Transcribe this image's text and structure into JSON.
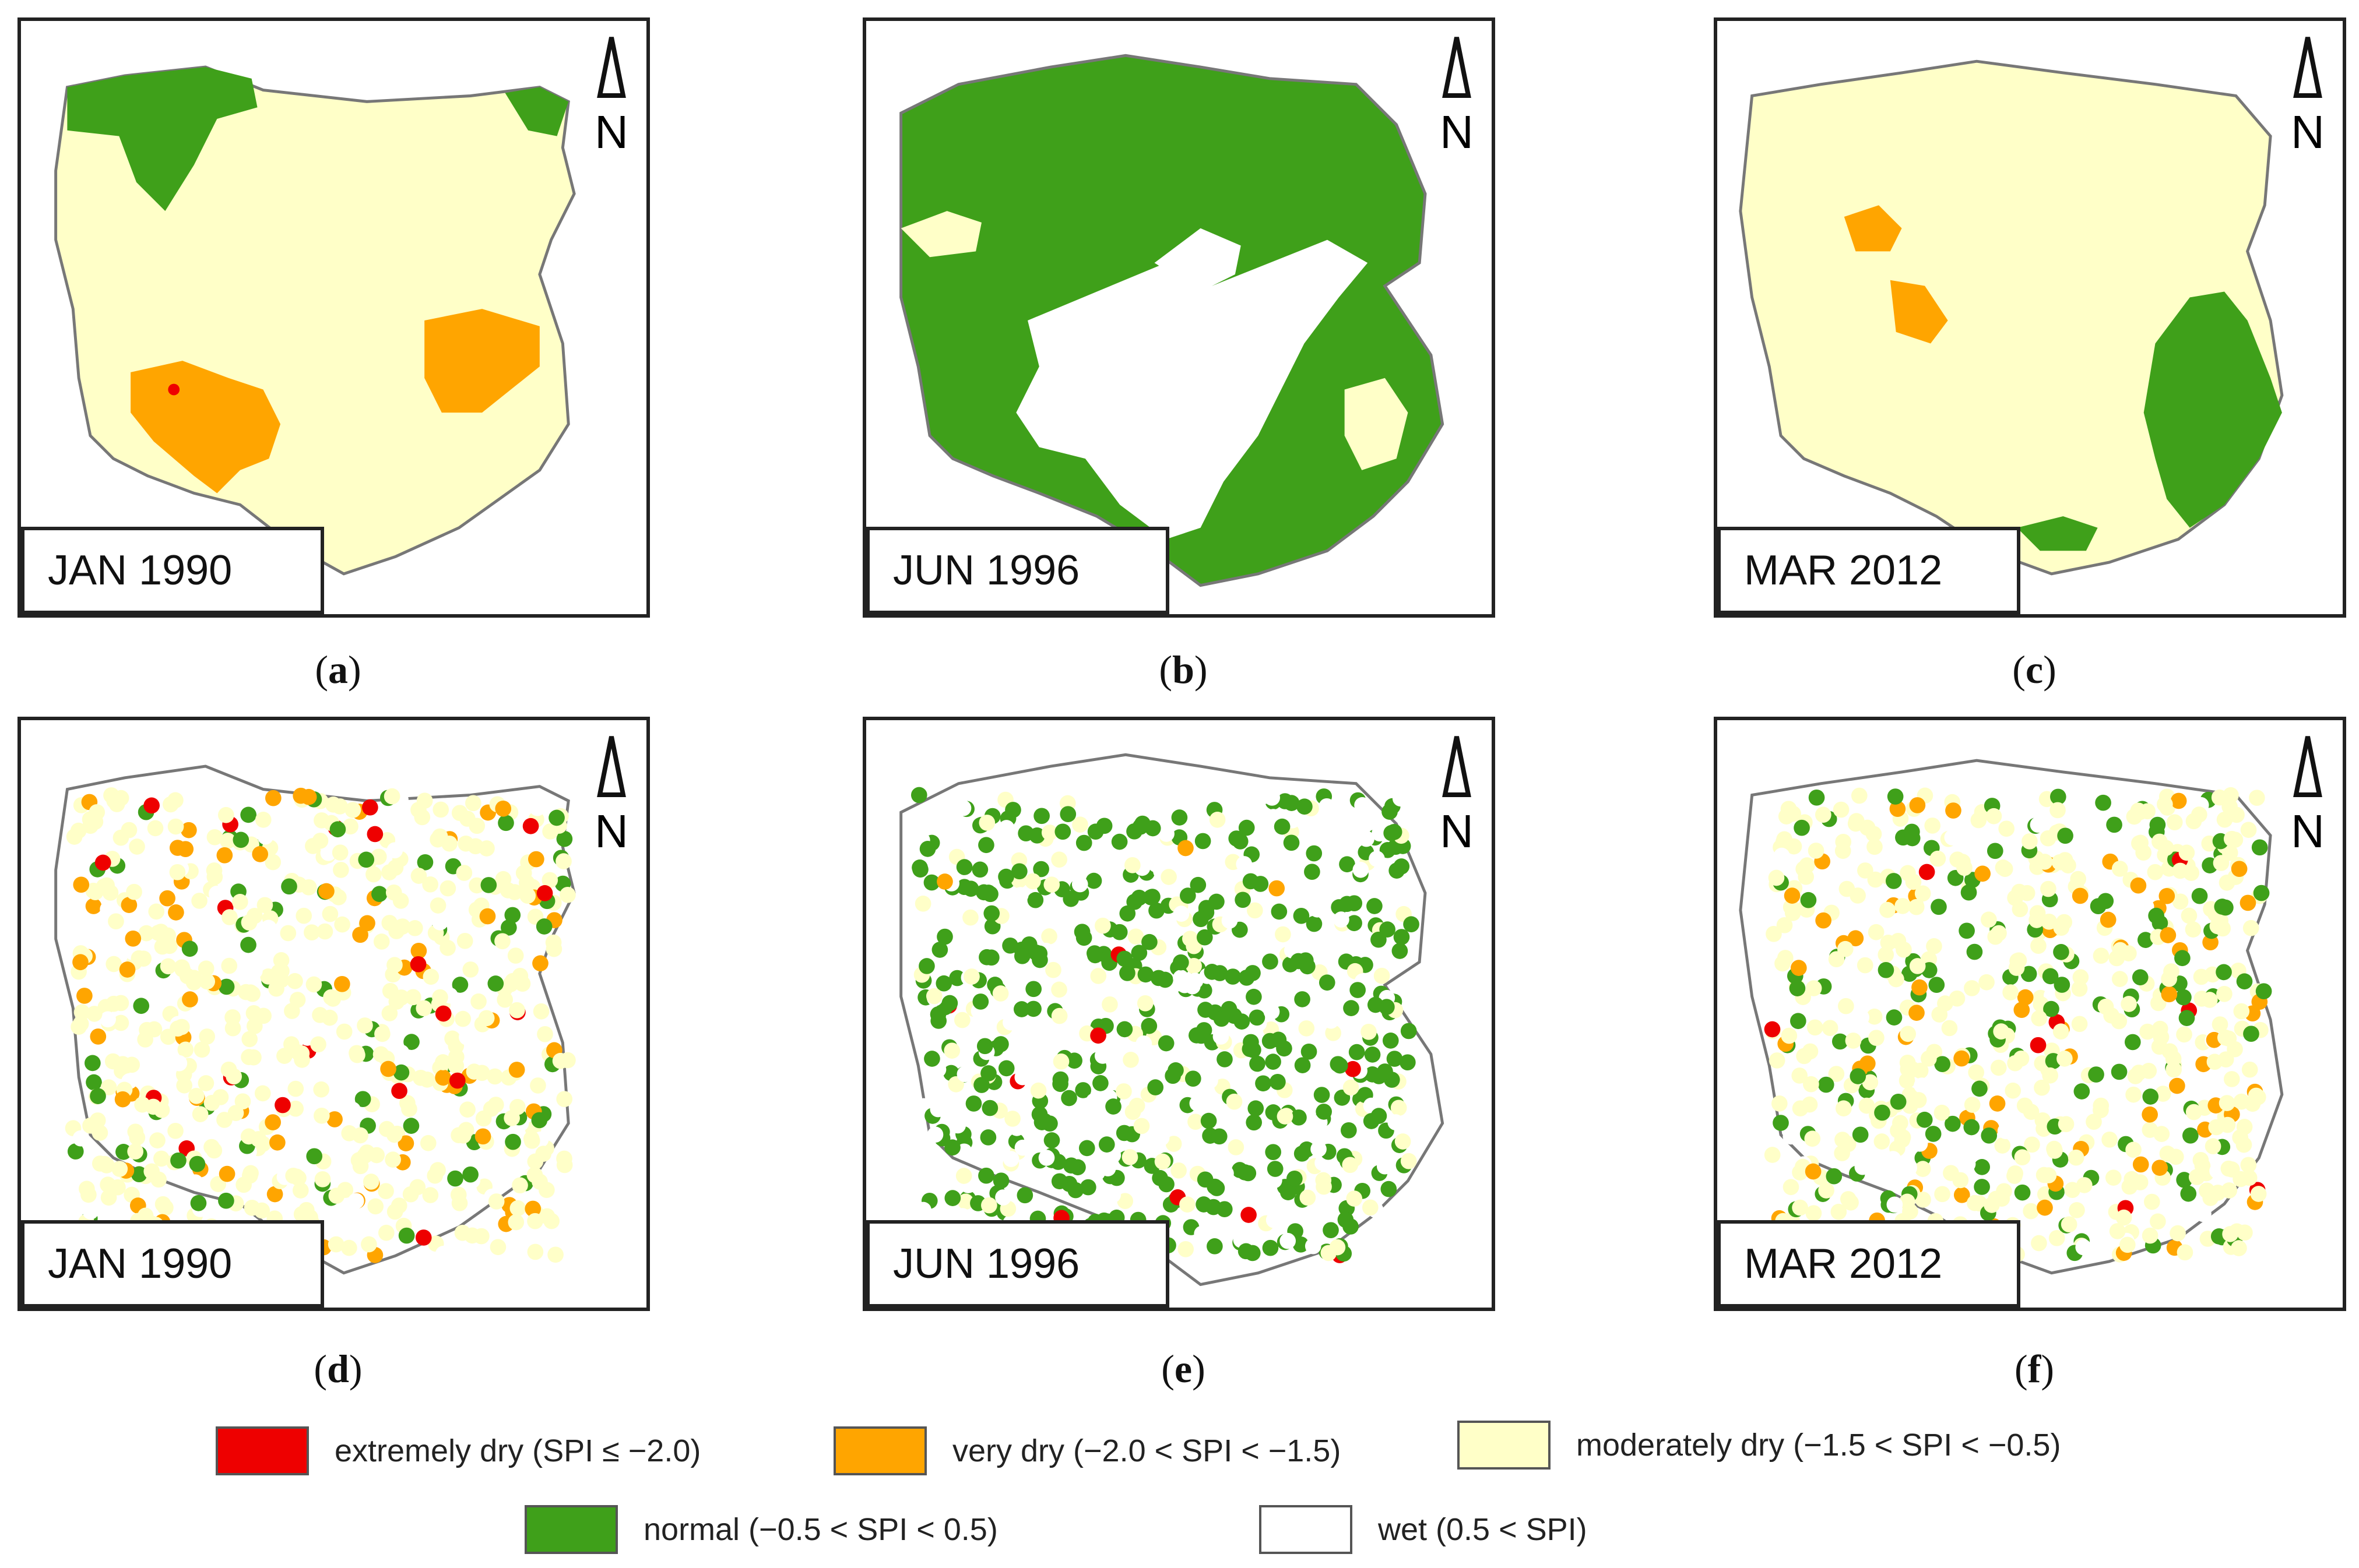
{
  "panels": [
    {
      "id": "a",
      "date": "JAN 1990",
      "caption_letter": "a",
      "kind": "continuous"
    },
    {
      "id": "b",
      "date": "JUN 1996",
      "caption_letter": "b",
      "kind": "continuous"
    },
    {
      "id": "c",
      "date": "MAR 2012",
      "caption_letter": "c",
      "kind": "continuous"
    },
    {
      "id": "d",
      "date": "JAN 1990",
      "caption_letter": "d",
      "kind": "stations"
    },
    {
      "id": "e",
      "date": "JUN 1996",
      "caption_letter": "e",
      "kind": "stations"
    },
    {
      "id": "f",
      "date": "MAR 2012",
      "caption_letter": "f",
      "kind": "stations"
    }
  ],
  "north_arrow_label": "N",
  "legend": [
    {
      "key": "extremely",
      "label": "extremely dry (SPI ≤ −2.0)",
      "color": "#ee0000"
    },
    {
      "key": "very",
      "label": "very dry (−2.0 < SPI < −1.5)",
      "color": "#ffa500"
    },
    {
      "key": "moderately",
      "label": "moderately dry (−1.5 < SPI < −0.5)",
      "color": "#ffffc8"
    },
    {
      "key": "normal",
      "label": "normal (−0.5 < SPI < 0.5)",
      "color": "#3fa01a"
    },
    {
      "key": "wet",
      "label": "wet (0.5 < SPI)",
      "color": "#ffffff"
    }
  ]
}
